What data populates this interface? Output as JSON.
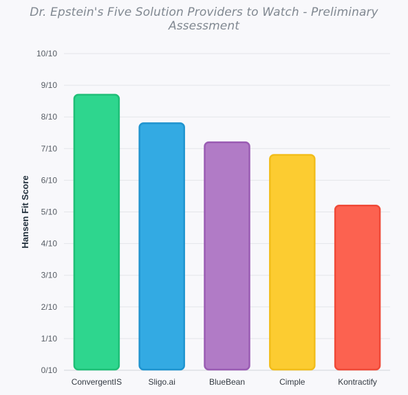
{
  "chart_data": {
    "type": "bar",
    "title": "Dr. Epstein's Five Solution Providers to Watch - Preliminary Assessment",
    "xlabel": "",
    "ylabel": "Hansen Fit Score",
    "ylim": [
      0,
      10
    ],
    "y_ticks": [
      "0/10",
      "1/10",
      "2/10",
      "3/10",
      "4/10",
      "5/10",
      "6/10",
      "7/10",
      "8/10",
      "9/10",
      "10/10"
    ],
    "categories": [
      "ConvergentIS",
      "Sligo.ai",
      "BlueBean",
      "Cimple",
      "Kontractify"
    ],
    "values": [
      8.7,
      7.8,
      7.2,
      6.8,
      5.2
    ],
    "colors": {
      "fill": [
        "#2ed68e",
        "#33aae3",
        "#b17bc6",
        "#fccc31",
        "#fc6250"
      ],
      "stroke": [
        "#1fbf77",
        "#1f94cf",
        "#9a5cb3",
        "#f2bd1a",
        "#ef4a38"
      ]
    },
    "grid": true,
    "legend": "none"
  }
}
